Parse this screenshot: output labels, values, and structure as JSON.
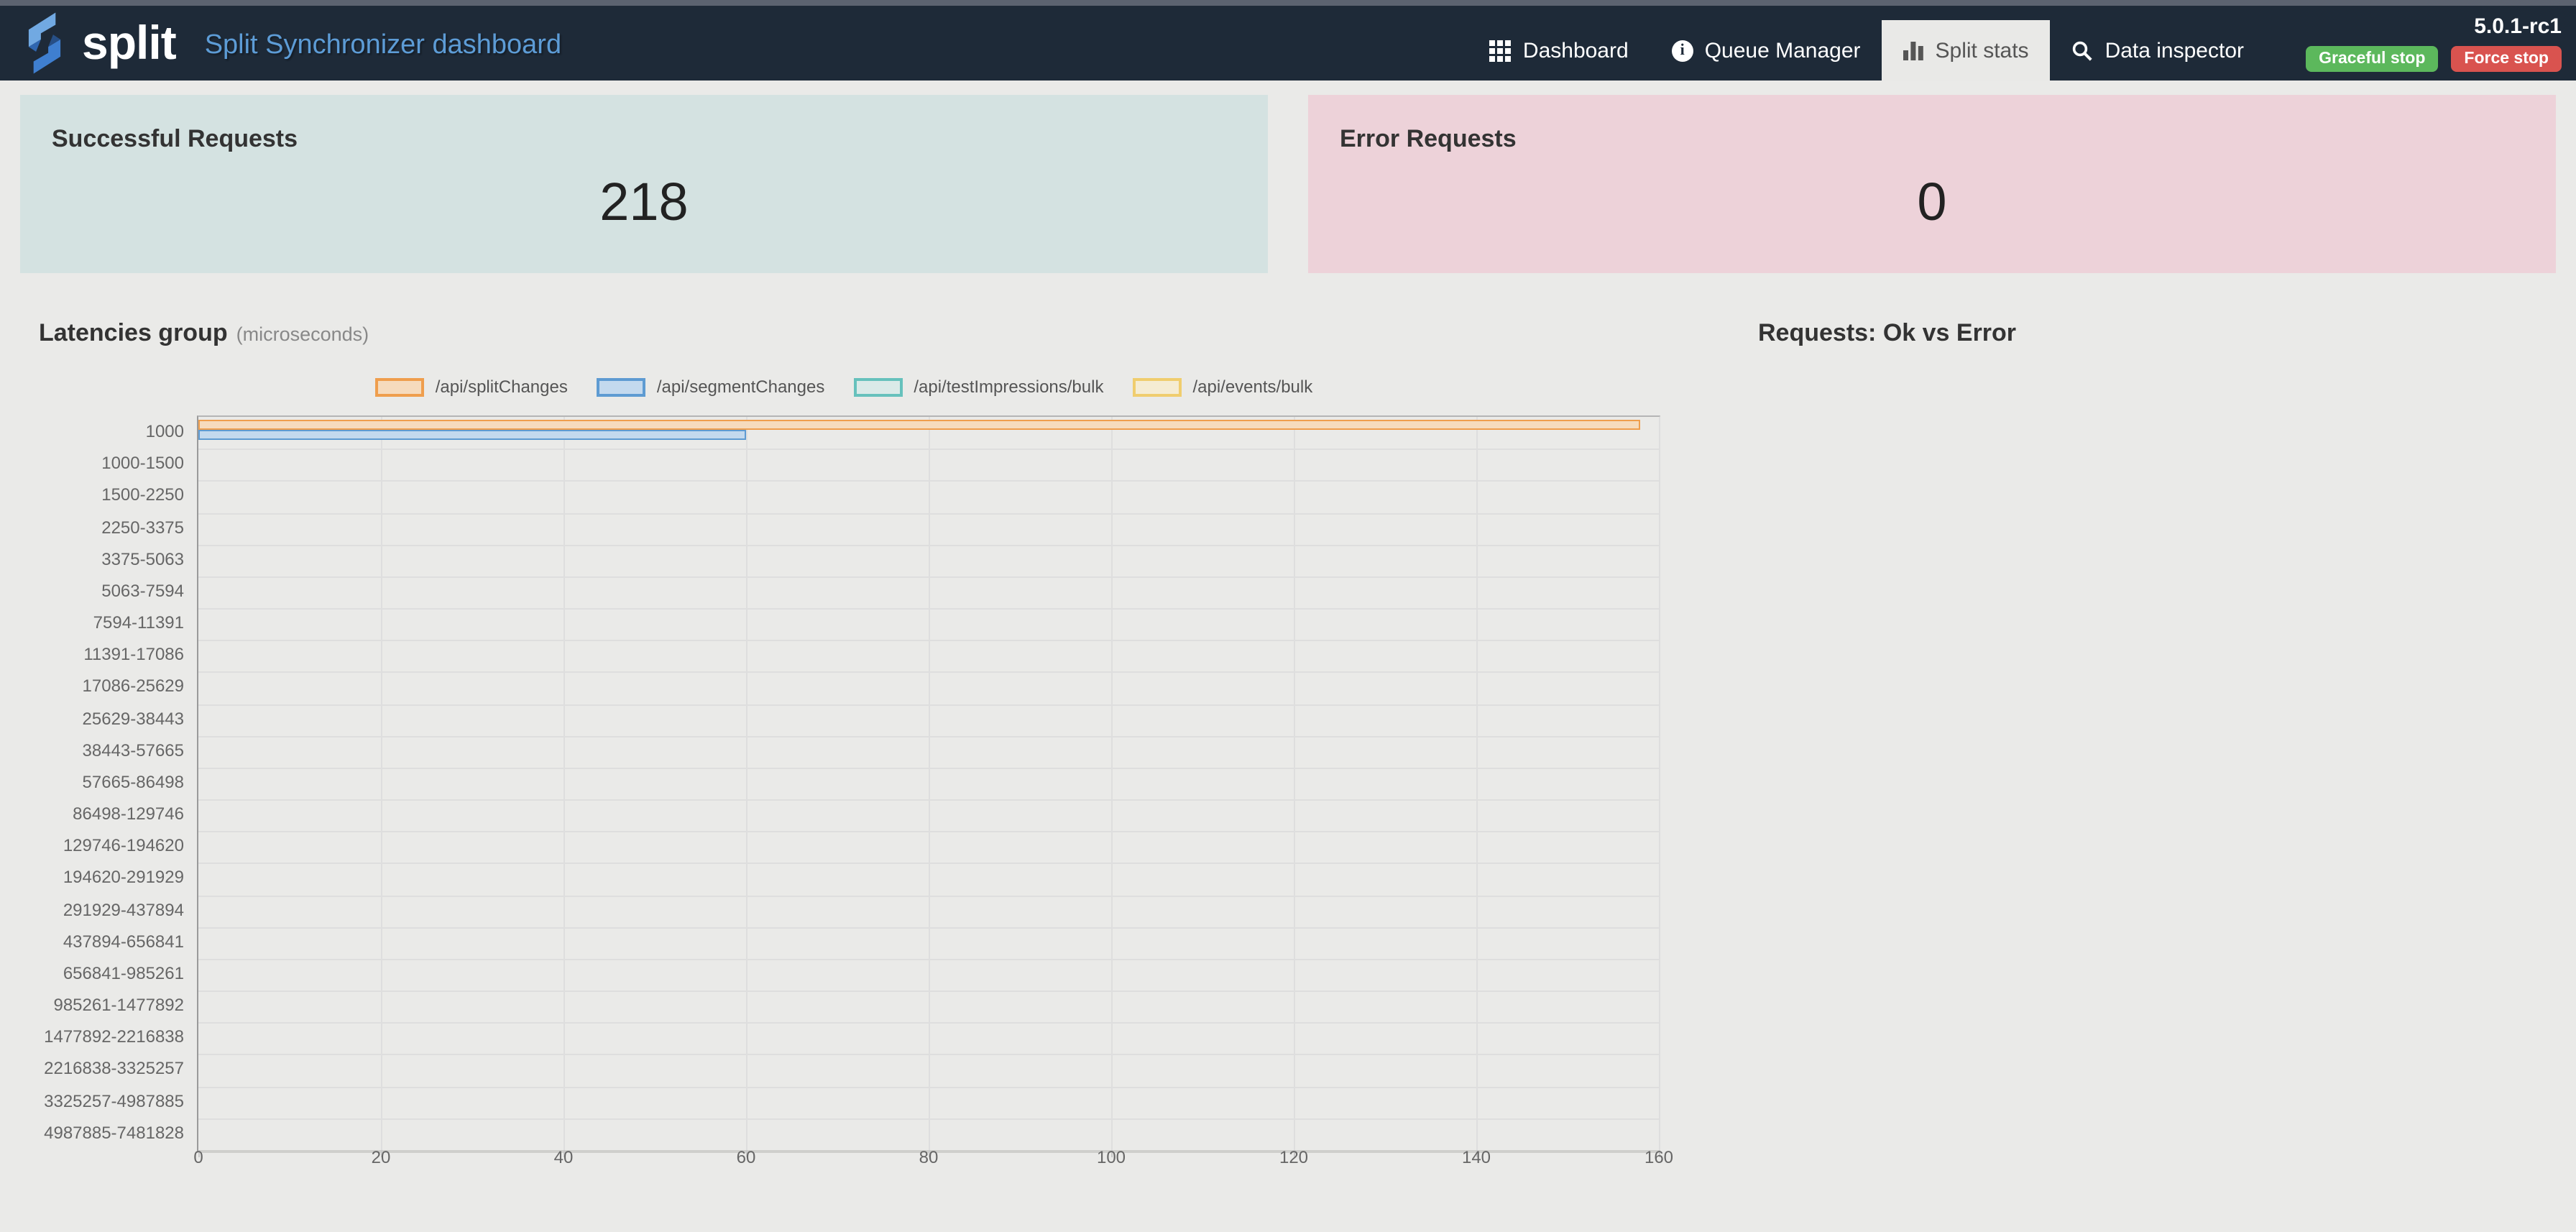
{
  "navbar": {
    "brand": "split",
    "subtitle": "Split Synchronizer dashboard",
    "items": [
      {
        "label": "Dashboard",
        "icon": "grid-icon",
        "active": false
      },
      {
        "label": "Queue Manager",
        "icon": "info-icon",
        "active": false
      },
      {
        "label": "Split stats",
        "icon": "bar-chart-icon",
        "active": true
      },
      {
        "label": "Data inspector",
        "icon": "search-icon",
        "active": false
      }
    ],
    "version": "5.0.1-rc1",
    "graceful_stop": "Graceful stop",
    "force_stop": "Force stop"
  },
  "cards": {
    "success": {
      "title": "Successful Requests",
      "value": "218"
    },
    "error": {
      "title": "Error Requests",
      "value": "0"
    }
  },
  "sections": {
    "latencies_title": "Latencies group",
    "latencies_subtitle": "(microseconds)",
    "requests_title": "Requests: Ok vs Error"
  },
  "colors": {
    "top_strip": "#5c6370",
    "navbar_bg": "#1e2a38",
    "page_bg": "#eaeae8",
    "brand_blue": "#5d9cd6",
    "success_card_bg": "#d4e2e1",
    "error_card_bg": "#edd2d9",
    "graceful_button": "#5cb85c",
    "force_button": "#d9534f",
    "active_tab_bg": "#e9e9e7"
  },
  "chart_data": {
    "type": "bar",
    "orientation": "horizontal",
    "title": "Latencies group (microseconds)",
    "categories": [
      "1000",
      "1000-1500",
      "1500-2250",
      "2250-3375",
      "3375-5063",
      "5063-7594",
      "7594-11391",
      "11391-17086",
      "17086-25629",
      "25629-38443",
      "38443-57665",
      "57665-86498",
      "86498-129746",
      "129746-194620",
      "194620-291929",
      "291929-437894",
      "437894-656841",
      "656841-985261",
      "985261-1477892",
      "1477892-2216838",
      "2216838-3325257",
      "3325257-4987885",
      "4987885-7481828"
    ],
    "series": [
      {
        "name": "/api/splitChanges",
        "border_color": "#ef9e4d",
        "fill_color": "#f6dbbd",
        "values": [
          158,
          0,
          0,
          0,
          0,
          0,
          0,
          0,
          0,
          0,
          0,
          0,
          0,
          0,
          0,
          0,
          0,
          0,
          0,
          0,
          0,
          0,
          0
        ]
      },
      {
        "name": "/api/segmentChanges",
        "border_color": "#5e9bd2",
        "fill_color": "#c3d9ee",
        "values": [
          60,
          0,
          0,
          0,
          0,
          0,
          0,
          0,
          0,
          0,
          0,
          0,
          0,
          0,
          0,
          0,
          0,
          0,
          0,
          0,
          0,
          0,
          0
        ]
      },
      {
        "name": "/api/testImpressions/bulk",
        "border_color": "#66c1bc",
        "fill_color": "#daeae8",
        "values": [
          0,
          0,
          0,
          0,
          0,
          0,
          0,
          0,
          0,
          0,
          0,
          0,
          0,
          0,
          0,
          0,
          0,
          0,
          0,
          0,
          0,
          0,
          0
        ]
      },
      {
        "name": "/api/events/bulk",
        "border_color": "#f0cd6e",
        "fill_color": "#f5ecd3",
        "values": [
          0,
          0,
          0,
          0,
          0,
          0,
          0,
          0,
          0,
          0,
          0,
          0,
          0,
          0,
          0,
          0,
          0,
          0,
          0,
          0,
          0,
          0,
          0
        ]
      }
    ],
    "xlim": [
      0,
      160
    ],
    "x_ticks": [
      0,
      20,
      40,
      60,
      80,
      100,
      120,
      140,
      160
    ],
    "grid": true,
    "legend_position": "top"
  }
}
